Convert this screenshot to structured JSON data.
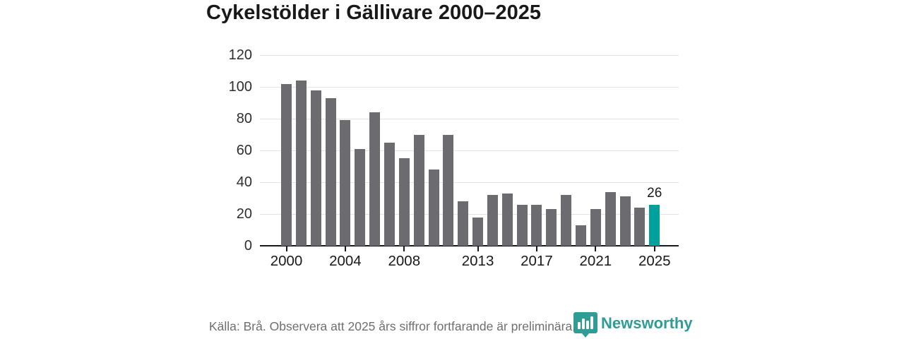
{
  "title": "Cykelstölder i Gällivare 2000–2025",
  "chart_data": {
    "type": "bar",
    "x": [
      2000,
      2001,
      2002,
      2003,
      2004,
      2005,
      2006,
      2007,
      2008,
      2009,
      2010,
      2011,
      2012,
      2013,
      2014,
      2015,
      2016,
      2017,
      2018,
      2019,
      2020,
      2021,
      2022,
      2023,
      2024,
      2025
    ],
    "values": [
      102,
      104,
      98,
      93,
      79,
      61,
      84,
      65,
      55,
      70,
      48,
      70,
      28,
      18,
      32,
      33,
      26,
      26,
      23,
      32,
      13,
      23,
      34,
      31,
      24,
      26
    ],
    "title": "Cykelstölder i Gällivare 2000–2025",
    "xlabel": "",
    "ylabel": "",
    "ylim": [
      0,
      120
    ],
    "y_ticks": [
      0,
      20,
      40,
      60,
      80,
      100,
      120
    ],
    "x_tick_years": [
      2000,
      2004,
      2008,
      2013,
      2017,
      2021,
      2025
    ],
    "grid": true,
    "legend": "none",
    "highlight_year": 2025,
    "highlight_value_label": "26"
  },
  "colors": {
    "bar": "#6b6b70",
    "highlight": "#00a19a",
    "grid": "#e2e2e2",
    "axis": "#191919",
    "brand": "#2f9c95"
  },
  "footer": {
    "source_note": "Källa: Brå. Observera att 2025 års siffror fortfarande är preliminära.",
    "brand": "Newsworthy"
  }
}
